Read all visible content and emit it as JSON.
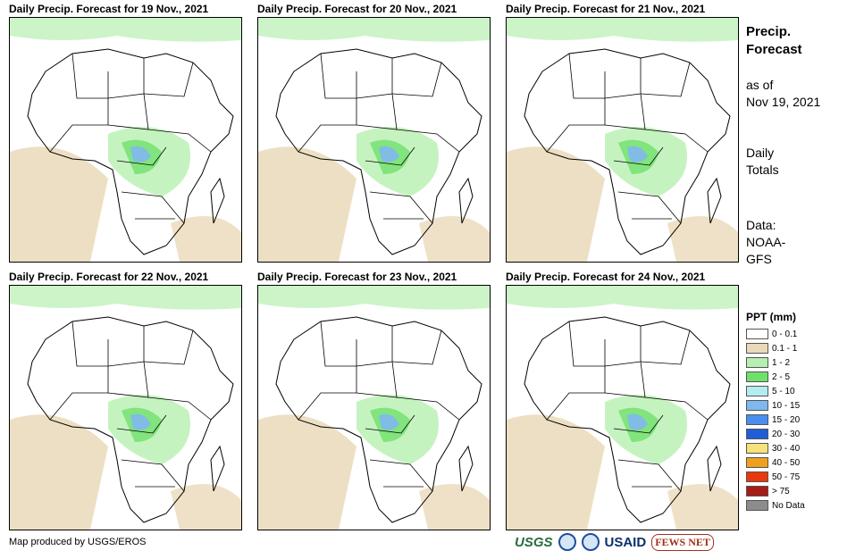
{
  "panels": [
    {
      "title": "Daily Precip. Forecast for 19 Nov., 2021"
    },
    {
      "title": "Daily Precip. Forecast for 20 Nov., 2021"
    },
    {
      "title": "Daily Precip. Forecast for 21 Nov., 2021"
    },
    {
      "title": "Daily Precip. Forecast for 22 Nov., 2021"
    },
    {
      "title": "Daily Precip. Forecast for 23 Nov., 2021"
    },
    {
      "title": "Daily Precip. Forecast for 24 Nov., 2021"
    }
  ],
  "sidebar": {
    "title_line1": "Precip.",
    "title_line2": "Forecast",
    "asof_line1": "as of",
    "asof_line2": "Nov 19, 2021",
    "totals_line1": "Daily",
    "totals_line2": "Totals",
    "data_line1": "Data:",
    "data_line2": "NOAA-",
    "data_line3": "GFS"
  },
  "legend": {
    "title": "PPT (mm)",
    "items": [
      {
        "label": "0 - 0.1",
        "color": "#ffffff"
      },
      {
        "label": "0.1 - 1",
        "color": "#ead9b9"
      },
      {
        "label": "1 - 2",
        "color": "#b6f0b0"
      },
      {
        "label": "2 - 5",
        "color": "#6fe06a"
      },
      {
        "label": "5 - 10",
        "color": "#b4ecf4"
      },
      {
        "label": "10 - 15",
        "color": "#7fb7ef"
      },
      {
        "label": "15 - 20",
        "color": "#4a8ef0"
      },
      {
        "label": "20 - 30",
        "color": "#1f5ed8"
      },
      {
        "label": "30 - 40",
        "color": "#f6e27a"
      },
      {
        "label": "40 - 50",
        "color": "#f0a020"
      },
      {
        "label": "50 - 75",
        "color": "#e8380e"
      },
      {
        "label": "> 75",
        "color": "#a51d16"
      },
      {
        "label": "No Data",
        "color": "#8c8c8c"
      }
    ]
  },
  "footer": {
    "credit": "Map produced by USGS/EROS"
  },
  "logos": {
    "usgs": "USGS",
    "usaid": "USAID",
    "fews": "FEWS NET"
  }
}
